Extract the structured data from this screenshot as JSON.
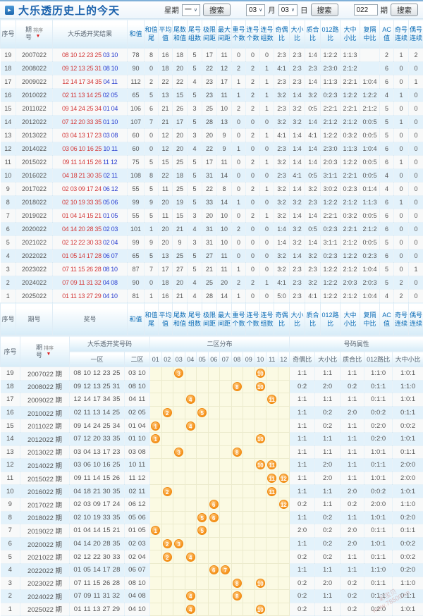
{
  "title": "大乐透历史上的今天",
  "sort_label": "排序",
  "toolbar": {
    "week_label": "星期",
    "week_value": "一",
    "search_label": "搜索",
    "month_value": "03",
    "month_label": "月",
    "day_value": "03",
    "day_label": "日",
    "issue_value": "022",
    "issue_label": "期"
  },
  "table1": {
    "headers": [
      {
        "l1": "序号",
        "dim": true
      },
      {
        "l1": "期",
        "l2": "号",
        "sort": true,
        "dim": true
      },
      {
        "l1": "大乐透开奖结果",
        "dim": true
      },
      {
        "l1": "和值"
      },
      {
        "l1": "和值",
        "l2": "尾"
      },
      {
        "l1": "平均",
        "l2": "值"
      },
      {
        "l1": "尾数",
        "l2": "和值"
      },
      {
        "l1": "尾号",
        "l2": "组数"
      },
      {
        "l1": "极限",
        "l2": "间距"
      },
      {
        "l1": "最大",
        "l2": "间距"
      },
      {
        "l1": "重号",
        "l2": "个数"
      },
      {
        "l1": "连号",
        "l2": "个数"
      },
      {
        "l1": "连号",
        "l2": "组数"
      },
      {
        "l1": "奇偶",
        "l2": "比"
      },
      {
        "l1": "大小",
        "l2": "比"
      },
      {
        "l1": "质合",
        "l2": "比"
      },
      {
        "l1": "012路",
        "l2": "比"
      },
      {
        "l1": "大中",
        "l2": "小比"
      },
      {
        "l1": "复隔",
        "l2": "中比"
      },
      {
        "l1": "AC值"
      },
      {
        "l1": "奇号",
        "l2": "连续"
      },
      {
        "l1": "偶号",
        "l2": "连续"
      }
    ],
    "footer_headers": [
      {
        "l1": "序号",
        "dim": true
      },
      {
        "l1": "期号",
        "dim": true
      },
      {
        "l1": "奖号",
        "dim": true
      },
      {
        "l1": "和值"
      },
      {
        "l1": "和值",
        "l2": "尾"
      },
      {
        "l1": "平均",
        "l2": "值"
      },
      {
        "l1": "尾数",
        "l2": "和值"
      },
      {
        "l1": "尾号",
        "l2": "组数"
      },
      {
        "l1": "极限",
        "l2": "间距"
      },
      {
        "l1": "最大",
        "l2": "间距"
      },
      {
        "l1": "重号",
        "l2": "个数"
      },
      {
        "l1": "连号",
        "l2": "个数"
      },
      {
        "l1": "连号",
        "l2": "组数"
      },
      {
        "l1": "奇偶",
        "l2": "比"
      },
      {
        "l1": "大小",
        "l2": "比"
      },
      {
        "l1": "质合",
        "l2": "比"
      },
      {
        "l1": "012路",
        "l2": "比"
      },
      {
        "l1": "大中",
        "l2": "小比"
      },
      {
        "l1": "复隔",
        "l2": "中比"
      },
      {
        "l1": "AC值"
      },
      {
        "l1": "奇号",
        "l2": "连续"
      },
      {
        "l1": "偶号",
        "l2": "连续"
      }
    ],
    "rows": [
      {
        "seq": 19,
        "period": "2007022",
        "front": "08 10 12 23 25",
        "back": "03 10",
        "stats": [
          78,
          8,
          16,
          18,
          5,
          17,
          11,
          0,
          0,
          0,
          "2:3",
          "2:3",
          "1:4",
          "1:2:2",
          "1:1:3",
          "",
          2,
          1,
          2
        ]
      },
      {
        "seq": 18,
        "period": "2008022",
        "front": "09 12 13 25 31",
        "back": "08 10",
        "stats": [
          90,
          0,
          18,
          20,
          5,
          22,
          12,
          2,
          2,
          1,
          "4:1",
          "2:3",
          "2:3",
          "2:3:0",
          "2:1:2",
          "",
          6,
          0,
          0
        ]
      },
      {
        "seq": 17,
        "period": "2009022",
        "front": "12 14 17 34 35",
        "back": "04 11",
        "stats": [
          112,
          2,
          22,
          22,
          4,
          23,
          17,
          1,
          2,
          1,
          "2:3",
          "2:3",
          "1:4",
          "1:1:3",
          "2:2:1",
          "1:0:4",
          6,
          0,
          1
        ]
      },
      {
        "seq": 16,
        "period": "2010022",
        "front": "02 11 13 14 25",
        "back": "02 05",
        "stats": [
          65,
          5,
          13,
          15,
          5,
          23,
          11,
          1,
          2,
          1,
          "3:2",
          "1:4",
          "3:2",
          "0:2:3",
          "1:2:2",
          "1:2:2",
          4,
          1,
          0
        ]
      },
      {
        "seq": 15,
        "period": "2011022",
        "front": "09 14 24 25 34",
        "back": "01 04",
        "stats": [
          106,
          6,
          21,
          26,
          3,
          25,
          10,
          2,
          2,
          1,
          "2:3",
          "3:2",
          "0:5",
          "2:2:1",
          "2:2:1",
          "2:1:2",
          5,
          0,
          0
        ]
      },
      {
        "seq": 14,
        "period": "2012022",
        "front": "07 12 20 33 35",
        "back": "01 10",
        "stats": [
          107,
          7,
          21,
          17,
          5,
          28,
          13,
          0,
          0,
          0,
          "3:2",
          "3:2",
          "1:4",
          "2:1:2",
          "2:1:2",
          "0:0:5",
          5,
          1,
          0
        ]
      },
      {
        "seq": 13,
        "period": "2013022",
        "front": "03 04 13 17 23",
        "back": "03 08",
        "stats": [
          60,
          0,
          12,
          20,
          3,
          20,
          9,
          0,
          2,
          1,
          "4:1",
          "1:4",
          "4:1",
          "1:2:2",
          "0:3:2",
          "0:0:5",
          5,
          0,
          0
        ]
      },
      {
        "seq": 12,
        "period": "2014022",
        "front": "03 06 10 16 25",
        "back": "10 11",
        "stats": [
          60,
          0,
          12,
          20,
          4,
          22,
          9,
          1,
          0,
          0,
          "2:3",
          "1:4",
          "1:4",
          "2:3:0",
          "1:1:3",
          "1:0:4",
          6,
          0,
          0
        ]
      },
      {
        "seq": 11,
        "period": "2015022",
        "front": "09 11 14 15 26",
        "back": "11 12",
        "stats": [
          75,
          5,
          15,
          25,
          5,
          17,
          11,
          0,
          2,
          1,
          "3:2",
          "1:4",
          "1:4",
          "2:0:3",
          "1:2:2",
          "0:0:5",
          6,
          1,
          0
        ]
      },
      {
        "seq": 10,
        "period": "2016022",
        "front": "04 18 21 30 35",
        "back": "02 11",
        "stats": [
          108,
          8,
          22,
          18,
          5,
          31,
          14,
          0,
          0,
          0,
          "2:3",
          "4:1",
          "0:5",
          "3:1:1",
          "2:2:1",
          "0:0:5",
          4,
          0,
          0
        ]
      },
      {
        "seq": 9,
        "period": "2017022",
        "front": "02 03 09 17 24",
        "back": "06 12",
        "stats": [
          55,
          5,
          11,
          25,
          5,
          22,
          8,
          0,
          2,
          1,
          "3:2",
          "1:4",
          "3:2",
          "3:0:2",
          "0:2:3",
          "0:1:4",
          4,
          0,
          0
        ]
      },
      {
        "seq": 8,
        "period": "2018022",
        "front": "02 10 19 33 35",
        "back": "05 06",
        "stats": [
          99,
          9,
          20,
          19,
          5,
          33,
          14,
          1,
          0,
          0,
          "3:2",
          "3:2",
          "2:3",
          "1:2:2",
          "2:1:2",
          "1:1:3",
          6,
          1,
          0
        ]
      },
      {
        "seq": 7,
        "period": "2019022",
        "front": "01 04 14 15 21",
        "back": "01 05",
        "stats": [
          55,
          5,
          11,
          15,
          3,
          20,
          10,
          0,
          2,
          1,
          "3:2",
          "1:4",
          "1:4",
          "2:2:1",
          "0:3:2",
          "0:0:5",
          6,
          0,
          0
        ]
      },
      {
        "seq": 6,
        "period": "2020022",
        "front": "04 14 20 28 35",
        "back": "02 03",
        "stats": [
          101,
          1,
          20,
          21,
          4,
          31,
          10,
          2,
          0,
          0,
          "1:4",
          "3:2",
          "0:5",
          "0:2:3",
          "2:2:1",
          "2:1:2",
          6,
          0,
          0
        ]
      },
      {
        "seq": 5,
        "period": "2021022",
        "front": "02 12 22 30 33",
        "back": "02 04",
        "stats": [
          99,
          9,
          20,
          9,
          3,
          31,
          10,
          0,
          0,
          0,
          "1:4",
          "3:2",
          "1:4",
          "3:1:1",
          "2:1:2",
          "0:0:5",
          5,
          0,
          0
        ]
      },
      {
        "seq": 4,
        "period": "2022022",
        "front": "01 05 14 17 28",
        "back": "06 07",
        "stats": [
          65,
          5,
          13,
          25,
          5,
          27,
          11,
          0,
          0,
          0,
          "3:2",
          "1:4",
          "3:2",
          "0:2:3",
          "1:2:2",
          "0:2:3",
          6,
          0,
          0
        ]
      },
      {
        "seq": 3,
        "period": "2023022",
        "front": "07 11 15 26 28",
        "back": "08 10",
        "stats": [
          87,
          7,
          17,
          27,
          5,
          21,
          11,
          1,
          0,
          0,
          "3:2",
          "2:3",
          "2:3",
          "1:2:2",
          "2:1:2",
          "1:0:4",
          5,
          0,
          1
        ]
      },
      {
        "seq": 2,
        "period": "2024022",
        "front": "07 09 11 31 32",
        "back": "04 08",
        "stats": [
          90,
          0,
          18,
          20,
          4,
          25,
          20,
          2,
          2,
          1,
          "4:1",
          "2:3",
          "3:2",
          "1:2:2",
          "2:0:3",
          "2:0:3",
          5,
          2,
          0
        ]
      },
      {
        "seq": 1,
        "period": "2025022",
        "front": "01 11 13 27 29",
        "back": "04 10",
        "stats": [
          81,
          1,
          16,
          21,
          4,
          28,
          14,
          1,
          0,
          0,
          "5:0",
          "2:3",
          "4:1",
          "1:2:2",
          "2:1:2",
          "1:0:4",
          4,
          2,
          0
        ]
      }
    ]
  },
  "table2": {
    "header": {
      "seq": "序号",
      "period_l1": "期",
      "period_l2": "号",
      "numbers_group": "大乐透开奖号码",
      "zone1": "一区",
      "zone2": "二区",
      "dist_group": "二区分布",
      "attr_group": "号码属性",
      "ball_cols": [
        "01",
        "02",
        "03",
        "04",
        "05",
        "06",
        "07",
        "08",
        "09",
        "10",
        "11",
        "12"
      ],
      "attr_cols": [
        "奇偶比",
        "大小比",
        "质合比",
        "012路比",
        "大中小比"
      ]
    },
    "rows": [
      {
        "seq": 19,
        "period": "2007022 期",
        "zone1": "08 10 12 23 25",
        "zone2": "03 10",
        "balls": [
          3,
          10
        ],
        "attrs": [
          "1:1",
          "1:1",
          "1:1",
          "1:1:0",
          "1:0:1"
        ]
      },
      {
        "seq": 18,
        "period": "2008022 期",
        "zone1": "09 12 13 25 31",
        "zone2": "08 10",
        "balls": [
          8,
          10
        ],
        "attrs": [
          "0:2",
          "2:0",
          "0:2",
          "0:1:1",
          "1:1:0"
        ]
      },
      {
        "seq": 17,
        "period": "2009022 期",
        "zone1": "12 14 17 34 35",
        "zone2": "04 11",
        "balls": [
          4,
          11
        ],
        "attrs": [
          "1:1",
          "1:1",
          "1:1",
          "0:1:1",
          "1:0:1"
        ]
      },
      {
        "seq": 16,
        "period": "2010022 期",
        "zone1": "02 11 13 14 25",
        "zone2": "02 05",
        "balls": [
          2,
          5
        ],
        "attrs": [
          "1:1",
          "0:2",
          "2:0",
          "0:0:2",
          "0:1:1"
        ]
      },
      {
        "seq": 15,
        "period": "2011022 期",
        "zone1": "09 14 24 25 34",
        "zone2": "01 04",
        "balls": [
          1,
          4
        ],
        "attrs": [
          "1:1",
          "0:2",
          "1:1",
          "0:2:0",
          "0:0:2"
        ]
      },
      {
        "seq": 14,
        "period": "2012022 期",
        "zone1": "07 12 20 33 35",
        "zone2": "01 10",
        "balls": [
          1,
          10
        ],
        "attrs": [
          "1:1",
          "1:1",
          "1:1",
          "0:2:0",
          "1:0:1"
        ]
      },
      {
        "seq": 13,
        "period": "2013022 期",
        "zone1": "03 04 13 17 23",
        "zone2": "03 08",
        "balls": [
          3,
          8
        ],
        "attrs": [
          "1:1",
          "1:1",
          "1:1",
          "1:0:1",
          "0:1:1"
        ]
      },
      {
        "seq": 12,
        "period": "2014022 期",
        "zone1": "03 06 10 16 25",
        "zone2": "10 11",
        "balls": [
          10,
          11
        ],
        "attrs": [
          "1:1",
          "2:0",
          "1:1",
          "0:1:1",
          "2:0:0"
        ]
      },
      {
        "seq": 11,
        "period": "2015022 期",
        "zone1": "09 11 14 15 26",
        "zone2": "11 12",
        "balls": [
          11,
          12
        ],
        "attrs": [
          "1:1",
          "2:0",
          "1:1",
          "1:0:1",
          "2:0:0"
        ]
      },
      {
        "seq": 10,
        "period": "2016022 期",
        "zone1": "04 18 21 30 35",
        "zone2": "02 11",
        "balls": [
          2,
          11
        ],
        "attrs": [
          "1:1",
          "1:1",
          "2:0",
          "0:0:2",
          "1:0:1"
        ]
      },
      {
        "seq": 9,
        "period": "2017022 期",
        "zone1": "02 03 09 17 24",
        "zone2": "06 12",
        "balls": [
          6,
          12
        ],
        "attrs": [
          "0:2",
          "1:1",
          "0:2",
          "2:0:0",
          "1:1:0"
        ]
      },
      {
        "seq": 8,
        "period": "2018022 期",
        "zone1": "02 10 19 33 35",
        "zone2": "05 06",
        "balls": [
          5,
          6
        ],
        "attrs": [
          "1:1",
          "0:2",
          "1:1",
          "1:0:1",
          "0:2:0"
        ]
      },
      {
        "seq": 7,
        "period": "2019022 期",
        "zone1": "01 04 14 15 21",
        "zone2": "01 05",
        "balls": [
          1,
          5
        ],
        "attrs": [
          "2:0",
          "0:2",
          "2:0",
          "0:1:1",
          "0:1:1"
        ]
      },
      {
        "seq": 6,
        "period": "2020022 期",
        "zone1": "04 14 20 28 35",
        "zone2": "02 03",
        "balls": [
          2,
          3
        ],
        "attrs": [
          "1:1",
          "0:2",
          "2:0",
          "1:0:1",
          "0:0:2"
        ]
      },
      {
        "seq": 5,
        "period": "2021022 期",
        "zone1": "02 12 22 30 33",
        "zone2": "02 04",
        "balls": [
          2,
          4
        ],
        "attrs": [
          "0:2",
          "0:2",
          "1:1",
          "0:1:1",
          "0:0:2"
        ]
      },
      {
        "seq": 4,
        "period": "2022022 期",
        "zone1": "01 05 14 17 28",
        "zone2": "06 07",
        "balls": [
          6,
          7
        ],
        "attrs": [
          "1:1",
          "1:1",
          "1:1",
          "1:1:0",
          "0:2:0"
        ]
      },
      {
        "seq": 3,
        "period": "2023022 期",
        "zone1": "07 11 15 26 28",
        "zone2": "08 10",
        "balls": [
          8,
          10
        ],
        "attrs": [
          "0:2",
          "2:0",
          "0:2",
          "0:1:1",
          "1:1:0"
        ]
      },
      {
        "seq": 2,
        "period": "2024022 期",
        "zone1": "07 09 11 31 32",
        "zone2": "04 08",
        "balls": [
          4,
          8
        ],
        "attrs": [
          "0:2",
          "1:1",
          "0:2",
          "0:1:1",
          "0:1:1"
        ]
      },
      {
        "seq": 1,
        "period": "2025022 期",
        "zone1": "01 11 13 27 29",
        "zone2": "04 10",
        "balls": [
          4,
          10
        ],
        "attrs": [
          "0:2",
          "1:1",
          "0:2",
          "0:2:0",
          "1:0:1"
        ]
      }
    ]
  },
  "watermark": {
    "line1": "彩宝贝",
    "line2": "www.78500.cn"
  },
  "colors": {
    "accent_blue": "#0a6bb5",
    "front_red": "#d43c3c",
    "back_blue": "#2b3fd0",
    "ball_orange": "#f6931e",
    "grid_yellow": "#fbfae3",
    "row_alt": "#e3f2fb"
  }
}
